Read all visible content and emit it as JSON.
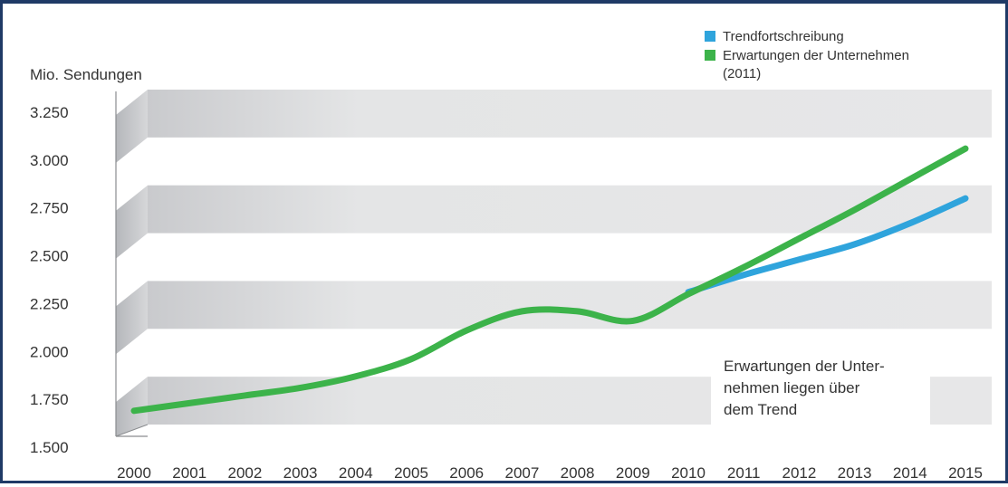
{
  "chart_data": {
    "type": "line",
    "title": "",
    "ylabel": "Mio. Sendungen",
    "xlabel": "",
    "ylim": [
      1500,
      3250
    ],
    "yticks": [
      1500,
      1750,
      2000,
      2250,
      2500,
      2750,
      3000,
      3250
    ],
    "ytick_labels": [
      "1.500",
      "1.750",
      "2.000",
      "2.250",
      "2.500",
      "2.750",
      "3.000",
      "3.250"
    ],
    "categories": [
      "2000",
      "2001",
      "2002",
      "2003",
      "2004",
      "2005",
      "2006",
      "2007",
      "2008",
      "2009",
      "2010",
      "2011",
      "2012",
      "2013",
      "2014",
      "2015"
    ],
    "legend_position": "top-right",
    "legend": [
      {
        "label": "Trendfortschreibung",
        "color": "#2fa4dc"
      },
      {
        "label": "Erwartungen der Unternehmen (2011)",
        "label_line1": "Erwartungen der Unternehmen",
        "label_line2": "(2011)",
        "color": "#3cb34a"
      }
    ],
    "series": [
      {
        "name": "Trendfortschreibung",
        "color": "#2fa4dc",
        "x": [
          2010,
          2011,
          2012,
          2013,
          2014,
          2015
        ],
        "values": [
          2310,
          2400,
          2480,
          2560,
          2670,
          2800
        ]
      },
      {
        "name": "Erwartungen der Unternehmen (2011)",
        "color": "#3cb34a",
        "x": [
          2000,
          2001,
          2002,
          2003,
          2004,
          2005,
          2006,
          2007,
          2008,
          2009,
          2010,
          2011,
          2012,
          2013,
          2014,
          2015
        ],
        "values": [
          1690,
          1730,
          1770,
          1810,
          1870,
          1960,
          2110,
          2210,
          2210,
          2160,
          2300,
          2440,
          2590,
          2740,
          2900,
          3060
        ]
      }
    ],
    "annotation": {
      "line1": "Erwartungen der Unter-",
      "line2": "nehmen liegen über",
      "line3": "dem Trend"
    }
  }
}
